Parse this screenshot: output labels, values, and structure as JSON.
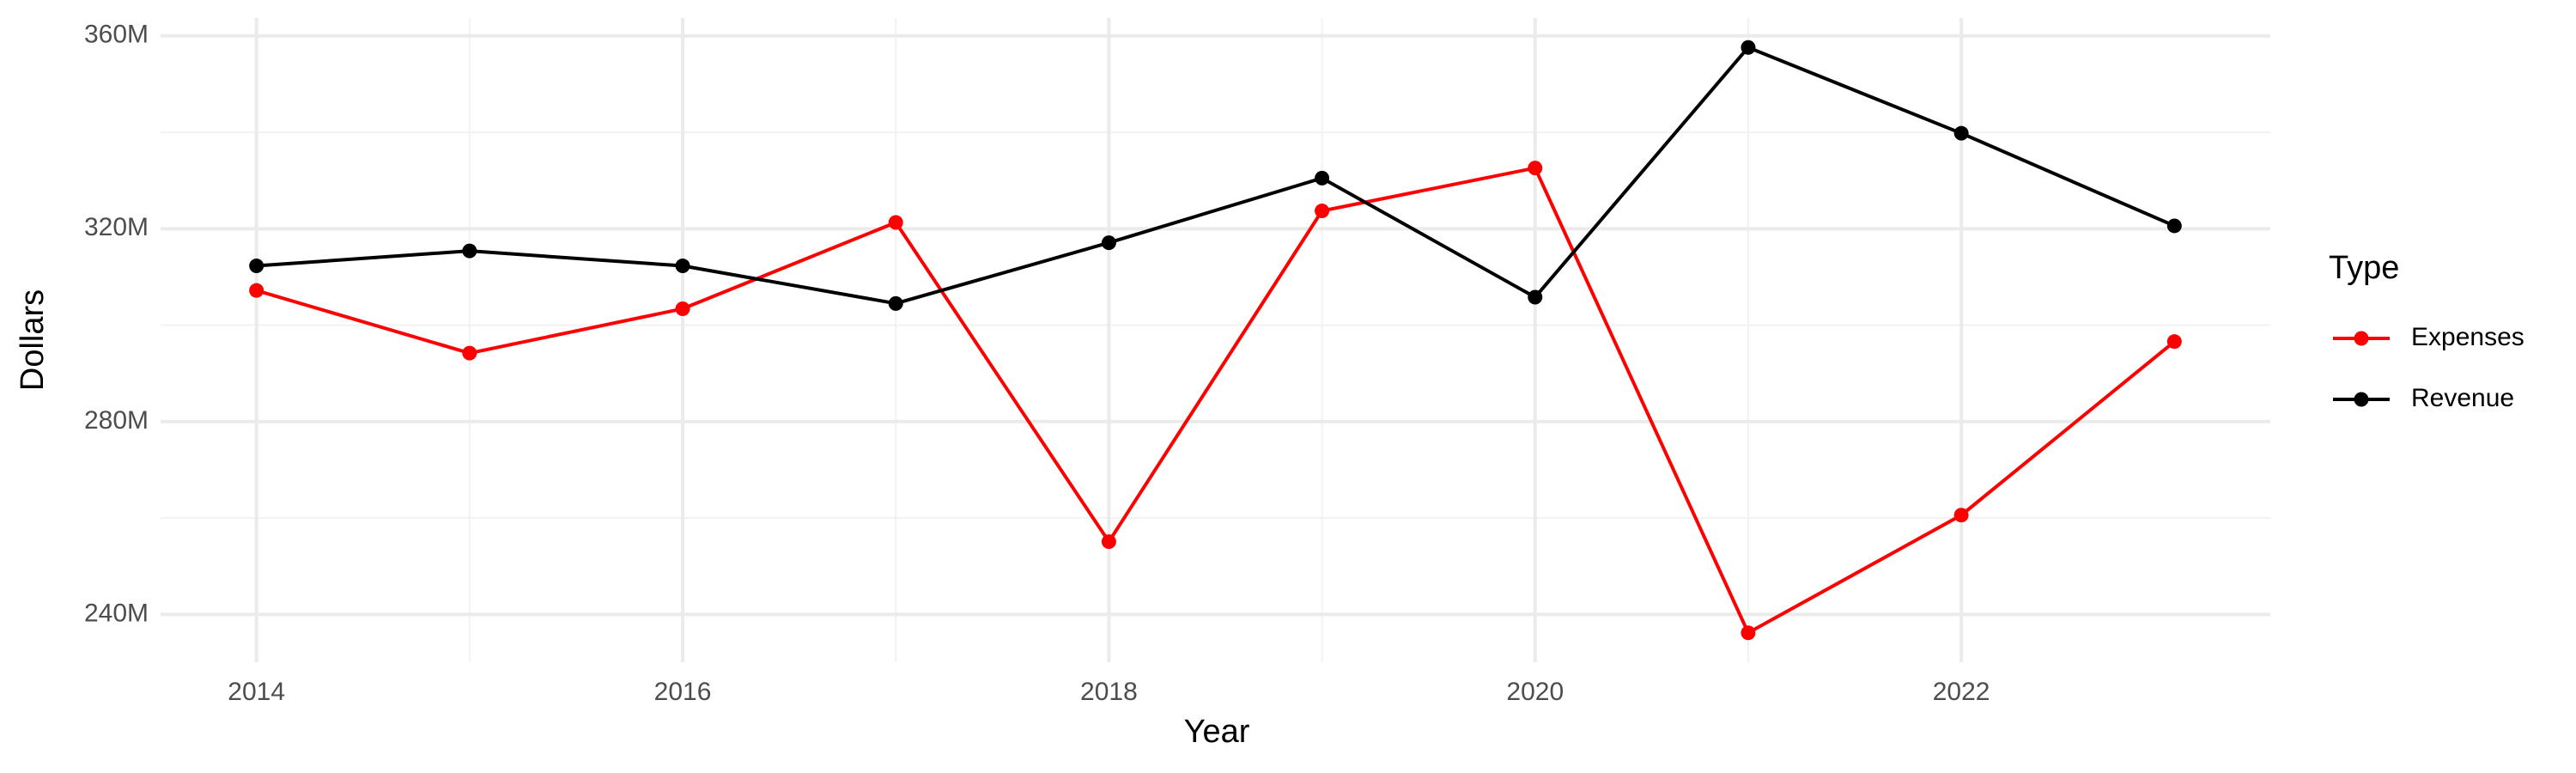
{
  "chart_data": {
    "type": "line",
    "x_label": "Year",
    "y_label": "Dollars",
    "x": [
      2014,
      2015,
      2016,
      2017,
      2018,
      2019,
      2020,
      2021,
      2022,
      2023
    ],
    "series": [
      {
        "name": "Expenses",
        "color": "#ff0000",
        "values": [
          307200000,
          294200000,
          303400000,
          321300000,
          255100000,
          323700000,
          332600000,
          236200000,
          260600000,
          296600000
        ]
      },
      {
        "name": "Revenue",
        "color": "#000000",
        "values": [
          312300000,
          315400000,
          312300000,
          304500000,
          317100000,
          330500000,
          305800000,
          357600000,
          339800000,
          320600000
        ]
      }
    ],
    "xlim": [
      2013.55,
      2023.45
    ],
    "xticks": [
      2014,
      2016,
      2018,
      2020,
      2022
    ],
    "ylim": [
      230100000,
      363700000
    ],
    "yticks": [
      {
        "value": 240000000,
        "label": "240M"
      },
      {
        "value": 280000000,
        "label": "280M"
      },
      {
        "value": 320000000,
        "label": "320M"
      },
      {
        "value": 360000000,
        "label": "360M"
      }
    ],
    "grid": true,
    "legend_title": "Type",
    "legend_position": "right"
  }
}
